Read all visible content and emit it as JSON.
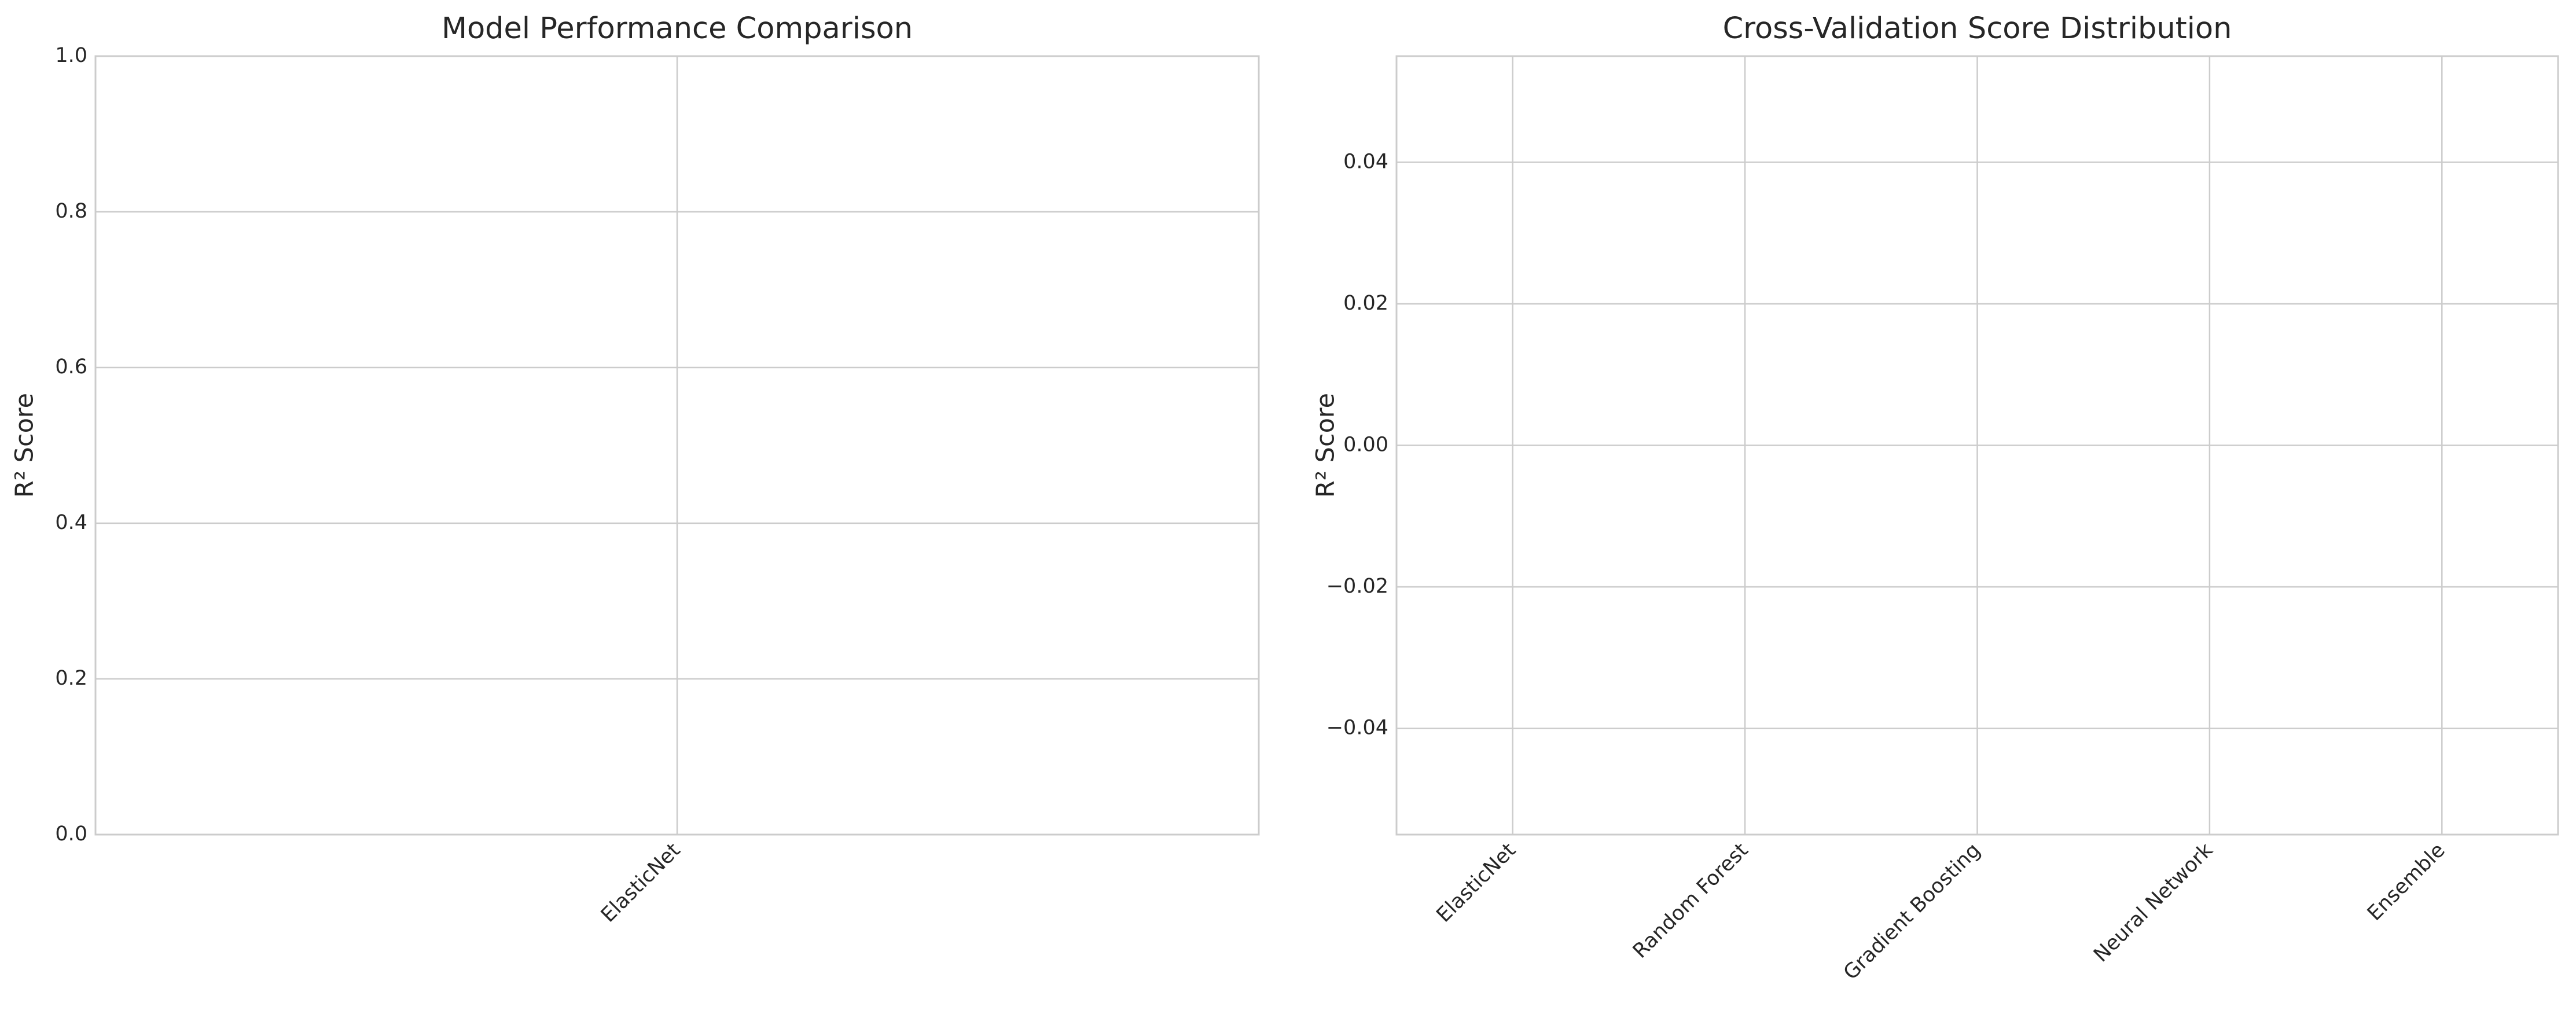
{
  "chart_data": [
    {
      "type": "bar",
      "title": "Model Performance Comparison",
      "ylabel": "R² Score",
      "categories": [
        "ElasticNet"
      ],
      "ylim": [
        0,
        1
      ],
      "yticks": [
        {
          "value": 0,
          "label": "0.0"
        },
        0.2,
        0.4,
        0.6,
        0.8,
        {
          "value": 1,
          "label": "1.0"
        }
      ],
      "grid": true
    },
    {
      "type": "box",
      "title": "Cross-Validation Score Distribution",
      "ylabel": "R² Score",
      "categories": [
        "ElasticNet",
        "Random Forest",
        "Gradient Boosting",
        "Neural Network",
        "Ensemble"
      ],
      "ylim": [
        -0.055,
        0.055
      ],
      "yticks": [
        {
          "value": -0.04,
          "label": "−0.04"
        },
        {
          "value": -0.02,
          "label": "−0.02"
        },
        {
          "value": 0,
          "label": "0.00"
        },
        0.02,
        0.04
      ],
      "grid": true
    }
  ]
}
